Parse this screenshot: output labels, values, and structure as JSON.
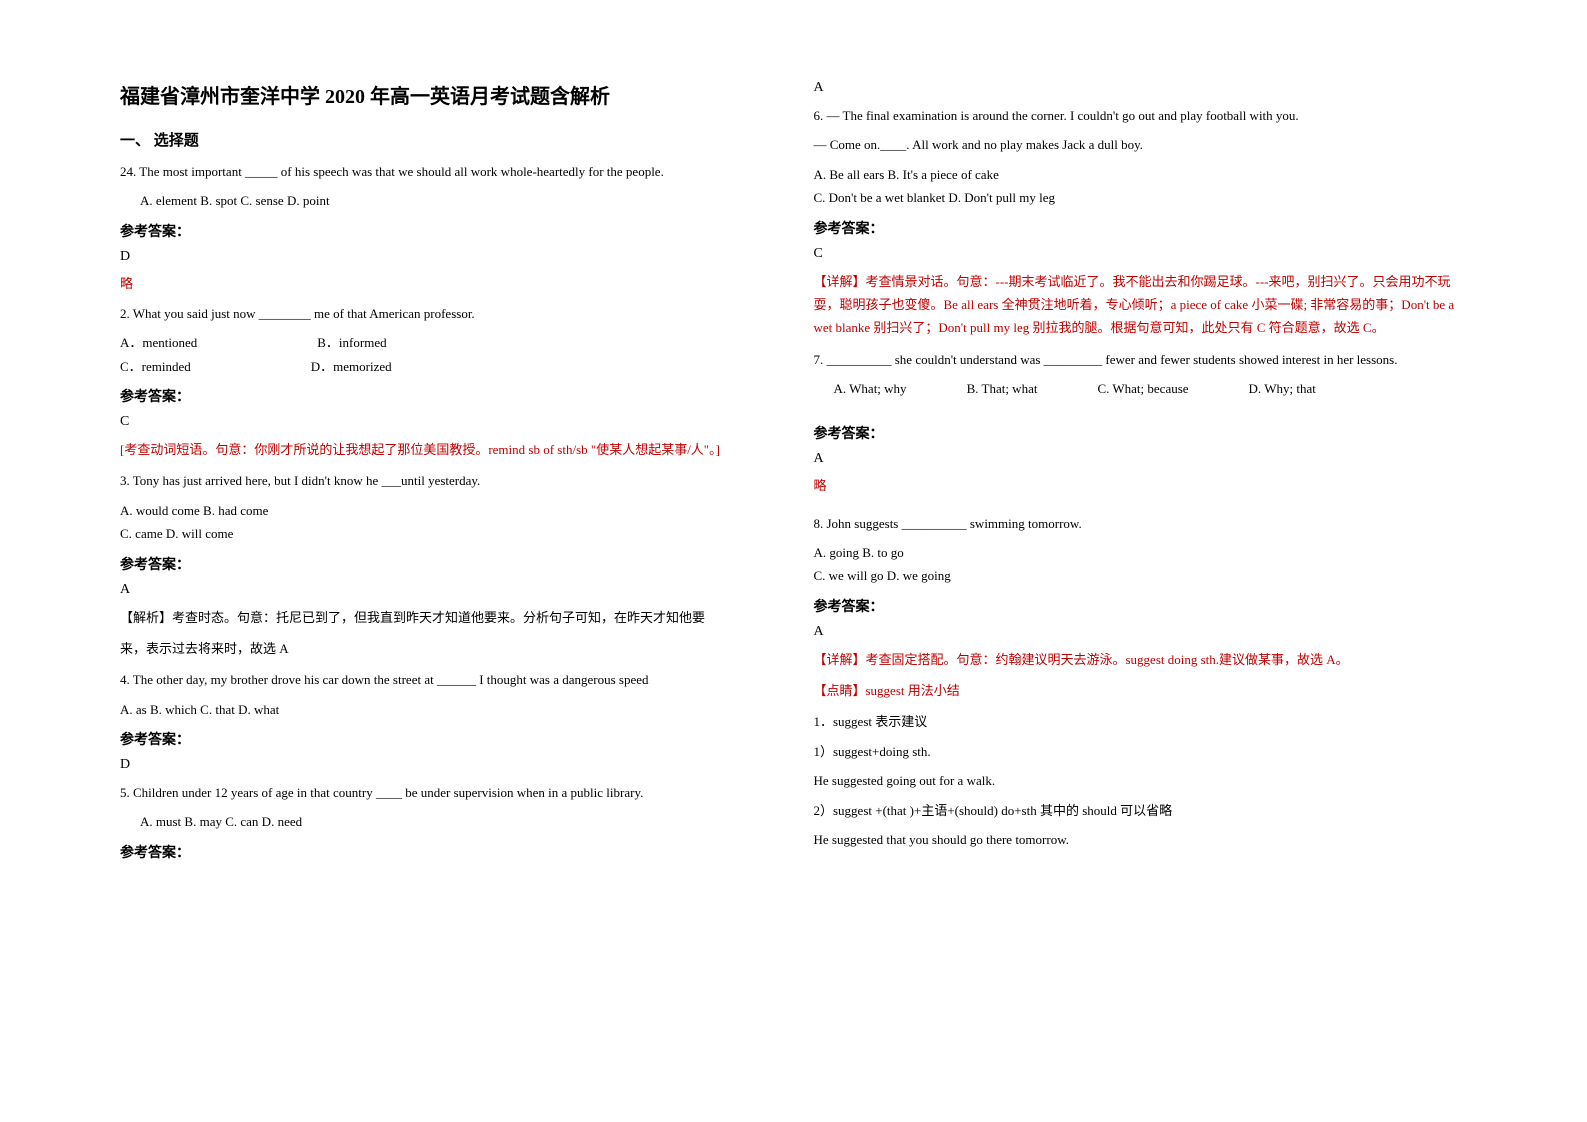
{
  "title": "福建省漳州市奎洋中学 2020 年高一英语月考试题含解析",
  "section1": "一、 选择题",
  "q24": {
    "text": "24. The most important _____ of his speech was that we should all work whole-heartedly for the people.",
    "options": "A. element   B. spot   C. sense   D. point",
    "answerLabel": "参考答案：",
    "answer": "D",
    "brief": "略"
  },
  "q2": {
    "text": "2. What you said just now ________ me of that American professor.",
    "optA": "A．mentioned",
    "optB": "B．informed",
    "optC": "C．reminded",
    "optD": "D．memorized",
    "answerLabel": "参考答案：",
    "answer": "C",
    "explanation": "[考查动词短语。句意：你刚才所说的让我想起了那位美国教授。remind sb of sth/sb \"使某人想起某事/人\"。]"
  },
  "q3": {
    "text": "3. Tony has just arrived here, but I didn't know he ___until yesterday.",
    "optAB": "A. would come   B. had come",
    "optCD": "C. came   D. will come",
    "answerLabel": "参考答案：",
    "answer": "A",
    "explanation1": "【解析】考查时态。句意：托尼已到了，但我直到昨天才知道他要来。分析句子可知，在昨天才知他要",
    "explanation2": "来，表示过去将来时，故选 A"
  },
  "q4": {
    "text": "4. The other day, my brother drove his car down the street at ______ I thought was a dangerous speed",
    "options": "A. as    B. which   C. that   D. what",
    "answerLabel": "参考答案：",
    "answer": "D"
  },
  "q5": {
    "text": "5. Children under 12 years of age in that country ____ be under supervision when in a public library.",
    "options": "A. must       B. may         C. can         D. need",
    "answerLabel": "参考答案：",
    "answer": "A"
  },
  "q6": {
    "line1": "6. — The final examination is around the corner. I couldn't go out and play football with you.",
    "line2": "— Come on.____. All work and no play makes Jack a dull boy.",
    "optAB": "A. Be all ears   B. It's a piece of cake",
    "optCD": "C. Don't be a wet blanket   D. Don't pull my leg",
    "answerLabel": "参考答案：",
    "answer": "C",
    "explanation": "【详解】考查情景对话。句意：---期末考试临近了。我不能出去和你踢足球。---来吧，别扫兴了。只会用功不玩耍，聪明孩子也变傻。Be all ears 全神贯注地听着，专心倾听；a piece of cake 小菜一碟; 非常容易的事；Don't be a wet blanke 别扫兴了；Don't pull my leg 别拉我的腿。根据句意可知，此处只有 C 符合题意，故选 C。"
  },
  "q7": {
    "text": "7. __________ she couldn't understand was _________ fewer and fewer students showed interest in her lessons.",
    "optA": "A. What; why",
    "optB": "B. That; what",
    "optC": "C. What; because",
    "optD": "D. Why; that",
    "answerLabel": "参考答案：",
    "answer": "A",
    "brief": "略"
  },
  "q8": {
    "text": "8. John suggests __________ swimming tomorrow.",
    "optAB": "A. going   B. to go",
    "optCD": "C. we will go   D. we going",
    "answerLabel": "参考答案：",
    "answer": "A",
    "explanation1": "【详解】考查固定搭配。句意：约翰建议明天去游泳。suggest doing sth.建议做某事，故选 A。",
    "explanation2": "【点睛】suggest 用法小结",
    "line1": "1．suggest 表示建议",
    "line2": "1）suggest+doing sth.",
    "line3": "He suggested going out for a walk.",
    "line4": "2）suggest +(that )+主语+(should) do+sth 其中的 should 可以省略",
    "line5": "He suggested that you should go there tomorrow."
  }
}
